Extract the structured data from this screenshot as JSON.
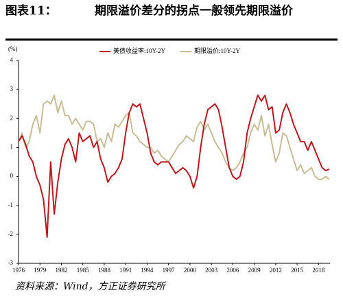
{
  "chart_data": {
    "type": "line",
    "label": "图表11：",
    "title": "期限溢价差分的拐点一般领先期限溢价",
    "y_label": "(%)",
    "source": "资料来源：Wind，方正证券研究所",
    "x": [
      1976,
      1976.5,
      1977,
      1977.5,
      1978,
      1978.5,
      1979,
      1979.5,
      1980,
      1980.5,
      1981,
      1981.5,
      1982,
      1982.5,
      1983,
      1983.5,
      1984,
      1984.5,
      1985,
      1985.5,
      1986,
      1986.5,
      1987,
      1987.5,
      1988,
      1988.5,
      1989,
      1989.5,
      1990,
      1990.5,
      1991,
      1991.5,
      1992,
      1992.5,
      1993,
      1993.5,
      1994,
      1994.5,
      1995,
      1995.5,
      1996,
      1996.5,
      1997,
      1997.5,
      1998,
      1998.5,
      1999,
      1999.5,
      2000,
      2000.5,
      2001,
      2001.5,
      2002,
      2002.5,
      2003,
      2003.5,
      2004,
      2004.5,
      2005,
      2005.5,
      2006,
      2006.5,
      2007,
      2007.5,
      2008,
      2008.5,
      2009,
      2009.5,
      2010,
      2010.5,
      2011,
      2011.5,
      2012,
      2012.5,
      2013,
      2013.5,
      2014,
      2014.5,
      2015,
      2015.5,
      2016,
      2016.5,
      2017,
      2017.5,
      2018,
      2018.5,
      2019,
      2019.5
    ],
    "series": [
      {
        "name": "美债收益率:10Y-2Y",
        "color": "#c0161d",
        "values": [
          1.2,
          1.4,
          1.1,
          0.7,
          0.5,
          0.0,
          -0.3,
          -0.8,
          -2.1,
          0.5,
          -1.3,
          -0.2,
          0.6,
          1.1,
          1.3,
          1.0,
          0.5,
          1.5,
          1.2,
          1.3,
          1.4,
          1.0,
          1.2,
          0.6,
          0.3,
          -0.2,
          0.0,
          0.1,
          0.3,
          0.6,
          1.5,
          2.2,
          2.5,
          2.4,
          2.5,
          2.0,
          1.5,
          0.8,
          0.5,
          0.4,
          0.5,
          0.5,
          0.5,
          0.3,
          0.1,
          0.2,
          0.3,
          0.2,
          0.0,
          -0.4,
          0.0,
          1.0,
          1.8,
          2.3,
          2.4,
          2.5,
          2.3,
          1.7,
          1.0,
          0.3,
          0.0,
          -0.1,
          0.0,
          0.5,
          1.5,
          2.0,
          2.4,
          2.8,
          2.6,
          2.8,
          2.3,
          2.4,
          1.5,
          1.6,
          2.2,
          2.5,
          2.2,
          1.8,
          1.5,
          1.2,
          1.2,
          0.9,
          1.2,
          0.9,
          0.6,
          0.3,
          0.2,
          0.25
        ]
      },
      {
        "name": "期限溢价:10Y-2Y",
        "color": "#c8bd96",
        "values": [
          1.2,
          1.5,
          1.0,
          1.2,
          1.8,
          2.1,
          1.5,
          2.5,
          2.6,
          2.5,
          2.8,
          2.2,
          2.6,
          2.1,
          2.1,
          1.8,
          2.0,
          1.8,
          1.6,
          1.9,
          1.9,
          1.8,
          1.2,
          1.3,
          1.0,
          1.5,
          1.2,
          1.8,
          1.7,
          1.9,
          2.1,
          2.2,
          1.5,
          1.4,
          1.2,
          1.1,
          1.0,
          1.0,
          0.8,
          0.9,
          0.7,
          0.6,
          0.5,
          0.7,
          0.9,
          1.1,
          1.2,
          1.4,
          1.3,
          1.2,
          1.7,
          1.9,
          1.6,
          1.8,
          1.5,
          1.2,
          1.0,
          0.8,
          0.5,
          0.3,
          0.2,
          0.3,
          0.5,
          0.8,
          1.0,
          1.5,
          1.8,
          1.6,
          2.1,
          1.4,
          1.8,
          1.1,
          0.5,
          0.8,
          1.5,
          1.4,
          1.0,
          0.6,
          0.2,
          0.4,
          0.1,
          0.2,
          0.3,
          0.0,
          -0.1,
          -0.1,
          0.0,
          -0.1
        ]
      }
    ],
    "xlim": [
      1976,
      2019.6
    ],
    "xticks": [
      1976,
      1979,
      1982,
      1985,
      1988,
      1991,
      1994,
      1997,
      2000,
      2003,
      2006,
      2009,
      2012,
      2015,
      2018
    ],
    "ylim": [
      -3,
      4
    ],
    "yticks": [
      -3,
      -2,
      -1,
      0,
      1,
      2,
      3,
      4
    ],
    "grid": false
  }
}
